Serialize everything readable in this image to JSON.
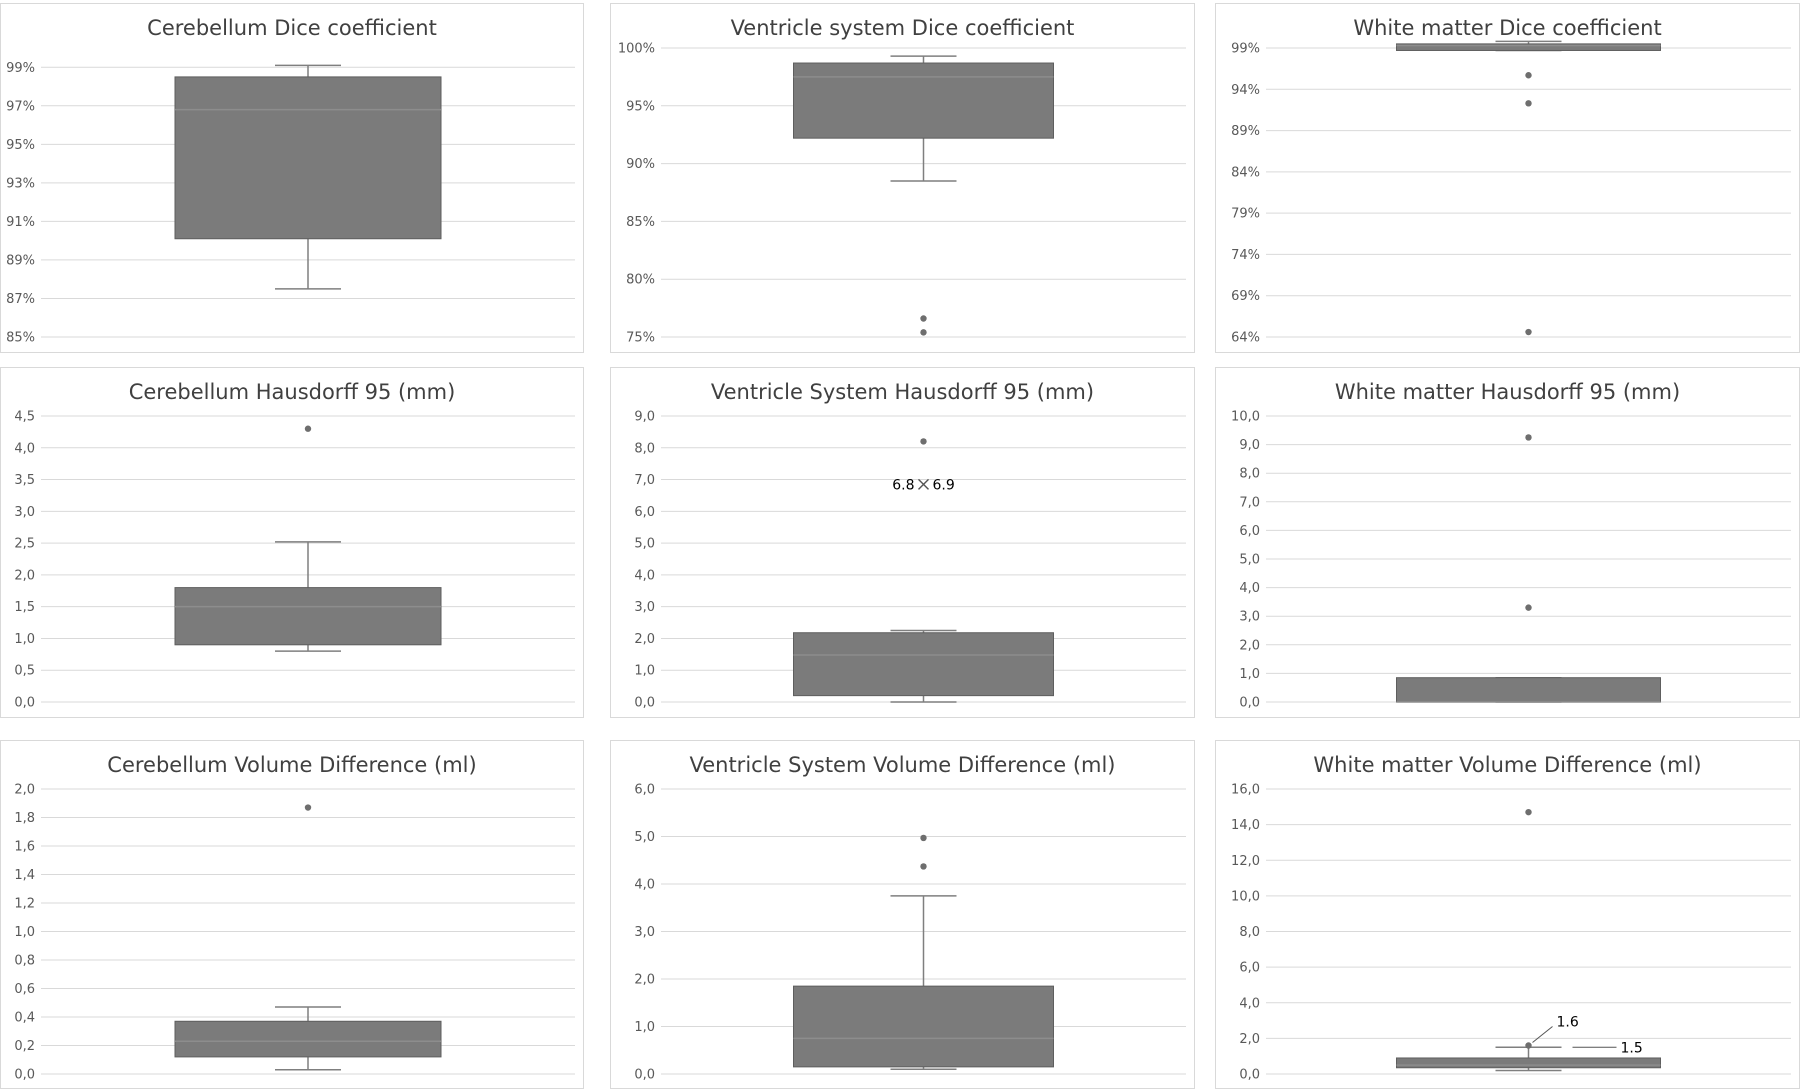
{
  "colors": {
    "box": "#7b7b7b",
    "edge": "#5e5e5e",
    "median": "#8d8d8d",
    "whisker": "#7f7f7f",
    "grid": "#d9d9d9",
    "point": "#6e6e6e"
  },
  "panels": [
    {
      "chart_data": {
        "type": "box",
        "title": "Cerebellum Dice coefficient",
        "ylim": [
          85,
          100
        ],
        "yticks": [
          85,
          87,
          89,
          91,
          93,
          95,
          97,
          99
        ],
        "ytick_labels": [
          "85%",
          "87%",
          "89%",
          "91%",
          "93%",
          "95%",
          "97%",
          "99%"
        ],
        "box": {
          "min": 87.5,
          "q1": 90.1,
          "median": 96.8,
          "q3": 98.5,
          "max": 99.1
        },
        "outliers": [],
        "annotations": []
      }
    },
    {
      "chart_data": {
        "type": "box",
        "title": "Ventricle system Dice coefficient",
        "ylim": [
          75,
          100
        ],
        "yticks": [
          75,
          80,
          85,
          90,
          95,
          100
        ],
        "ytick_labels": [
          "75%",
          "80%",
          "85%",
          "90%",
          "95%",
          "100%"
        ],
        "box": {
          "min": 88.5,
          "q1": 92.2,
          "median": 97.5,
          "q3": 98.7,
          "max": 99.3
        },
        "outliers": [
          76.6,
          75.4
        ],
        "annotations": []
      }
    },
    {
      "chart_data": {
        "type": "box",
        "title": "White matter Dice coefficient",
        "ylim": [
          64,
          99
        ],
        "yticks": [
          64,
          69,
          74,
          79,
          84,
          89,
          94,
          99
        ],
        "ytick_labels": [
          "64%",
          "69%",
          "74%",
          "79%",
          "84%",
          "89%",
          "94%",
          "99%"
        ],
        "box": {
          "min": 98.7,
          "q1": 98.7,
          "median": 99.3,
          "q3": 99.5,
          "max": 99.8
        },
        "outliers": [
          95.7,
          92.3,
          64.6
        ],
        "annotations": []
      }
    },
    {
      "chart_data": {
        "type": "box",
        "title": "Cerebellum Hausdorff 95 (mm)",
        "ylim": [
          0,
          4.5
        ],
        "yticks": [
          0,
          0.5,
          1.0,
          1.5,
          2.0,
          2.5,
          3.0,
          3.5,
          4.0,
          4.5
        ],
        "ytick_labels": [
          "0,0",
          "0,5",
          "1,0",
          "1,5",
          "2,0",
          "2,5",
          "3,0",
          "3,5",
          "4,0",
          "4,5"
        ],
        "box": {
          "min": 0.8,
          "q1": 0.9,
          "median": 1.5,
          "q3": 1.8,
          "max": 2.52
        },
        "outliers": [
          4.3
        ],
        "annotations": []
      }
    },
    {
      "chart_data": {
        "type": "box",
        "title": "Ventricle System Hausdorff 95 (mm)",
        "ylim": [
          0,
          9.0
        ],
        "yticks": [
          0,
          1,
          2,
          3,
          4,
          5,
          6,
          7,
          8,
          9
        ],
        "ytick_labels": [
          "0,0",
          "1,0",
          "2,0",
          "3,0",
          "4,0",
          "5,0",
          "6,0",
          "7,0",
          "8,0",
          "9,0"
        ],
        "box": {
          "min": 0.0,
          "q1": 0.2,
          "median": 1.48,
          "q3": 2.18,
          "max": 2.25
        },
        "outliers": [
          8.2
        ],
        "mean": 6.85,
        "annotations": [
          {
            "text": "6.8",
            "value": 6.85,
            "side": "left"
          },
          {
            "text": "6.9",
            "value": 6.85,
            "side": "right"
          }
        ]
      }
    },
    {
      "chart_data": {
        "type": "box",
        "title": "White matter Hausdorff 95 (mm)",
        "ylim": [
          0,
          10.0
        ],
        "yticks": [
          0,
          1,
          2,
          3,
          4,
          5,
          6,
          7,
          8,
          9,
          10
        ],
        "ytick_labels": [
          "0,0",
          "1,0",
          "2,0",
          "3,0",
          "4,0",
          "5,0",
          "6,0",
          "7,0",
          "8,0",
          "9,0",
          "10,0"
        ],
        "box": {
          "min": 0.0,
          "q1": 0.0,
          "median": 0.0,
          "q3": 0.85,
          "max": 0.85
        },
        "outliers": [
          9.25,
          3.3
        ],
        "annotations": []
      }
    },
    {
      "chart_data": {
        "type": "box",
        "title": "Cerebellum Volume Difference (ml)",
        "ylim": [
          0,
          2.0
        ],
        "yticks": [
          0,
          0.2,
          0.4,
          0.6,
          0.8,
          1.0,
          1.2,
          1.4,
          1.6,
          1.8,
          2.0
        ],
        "ytick_labels": [
          "0,0",
          "0,2",
          "0,4",
          "0,6",
          "0,8",
          "1,0",
          "1,2",
          "1,4",
          "1,6",
          "1,8",
          "2,0"
        ],
        "box": {
          "min": 0.03,
          "q1": 0.12,
          "median": 0.23,
          "q3": 0.37,
          "max": 0.47
        },
        "outliers": [
          1.87
        ],
        "annotations": []
      }
    },
    {
      "chart_data": {
        "type": "box",
        "title": "Ventricle System Volume Difference (ml)",
        "ylim": [
          0,
          6.0
        ],
        "yticks": [
          0,
          1,
          2,
          3,
          4,
          5,
          6
        ],
        "ytick_labels": [
          "0,0",
          "1,0",
          "2,0",
          "3,0",
          "4,0",
          "5,0",
          "6,0"
        ],
        "box": {
          "min": 0.1,
          "q1": 0.15,
          "median": 0.75,
          "q3": 1.85,
          "max": 3.75
        },
        "outliers": [
          4.97,
          4.37
        ],
        "annotations": []
      }
    },
    {
      "chart_data": {
        "type": "box",
        "title": "White matter Volume Difference (ml)",
        "ylim": [
          0,
          16.0
        ],
        "yticks": [
          0,
          2,
          4,
          6,
          8,
          10,
          12,
          14,
          16
        ],
        "ytick_labels": [
          "0,0",
          "2,0",
          "4,0",
          "6,0",
          "8,0",
          "10,0",
          "12,0",
          "14,0",
          "16,0"
        ],
        "box": {
          "min": 0.2,
          "q1": 0.35,
          "median": 0.5,
          "q3": 0.9,
          "max": 1.5
        },
        "outliers": [
          14.7,
          1.6
        ],
        "annotations": [
          {
            "text": "1.6",
            "value": 1.6,
            "side": "upper-right"
          },
          {
            "text": "1.5",
            "value": 1.5,
            "side": "right"
          }
        ]
      }
    }
  ]
}
